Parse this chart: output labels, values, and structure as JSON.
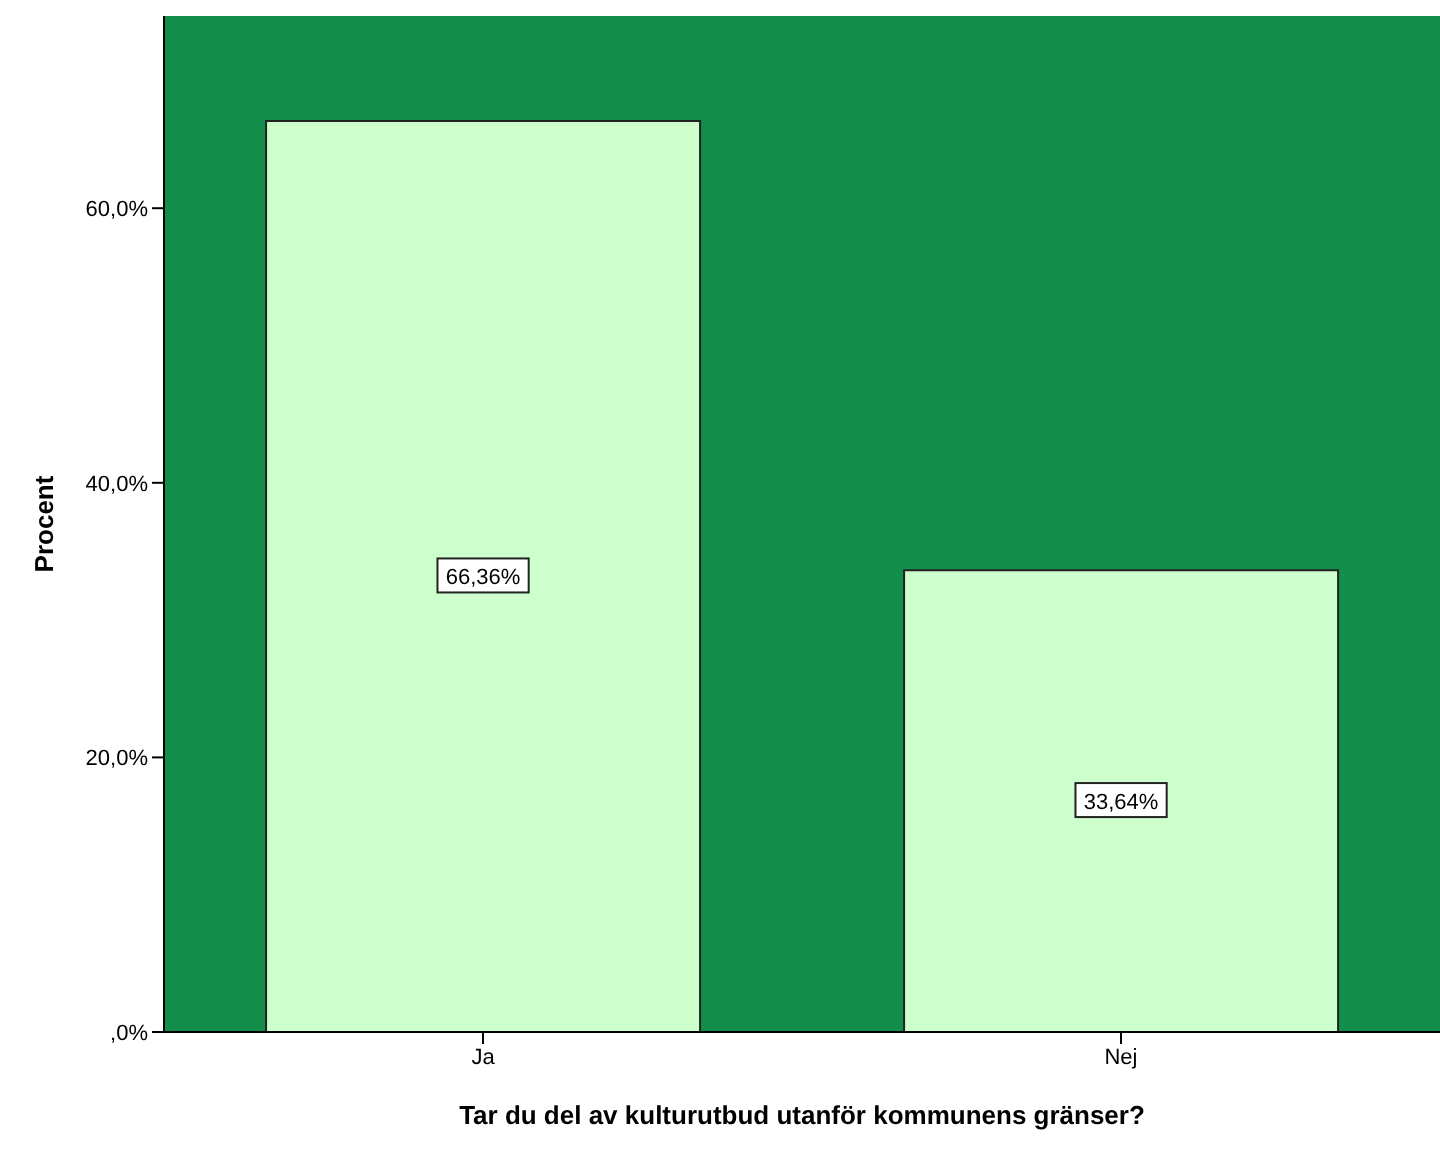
{
  "chart_data": {
    "type": "bar",
    "xlabel": "Tar du del av kulturutbud utanför kommunens gränser?",
    "ylabel": "Procent",
    "categories": [
      "Ja",
      "Nej"
    ],
    "values": [
      66.36,
      33.64
    ],
    "value_labels": [
      "66,36%",
      "33,64%"
    ],
    "color": "#ccffcc",
    "ylim": [
      0,
      74
    ],
    "yticks": [
      {
        "value": 0,
        "label": ",0%"
      },
      {
        "value": 20,
        "label": "20,0%"
      },
      {
        "value": 40,
        "label": "40,0%"
      },
      {
        "value": 60,
        "label": "60,0%"
      }
    ],
    "grid": false
  }
}
